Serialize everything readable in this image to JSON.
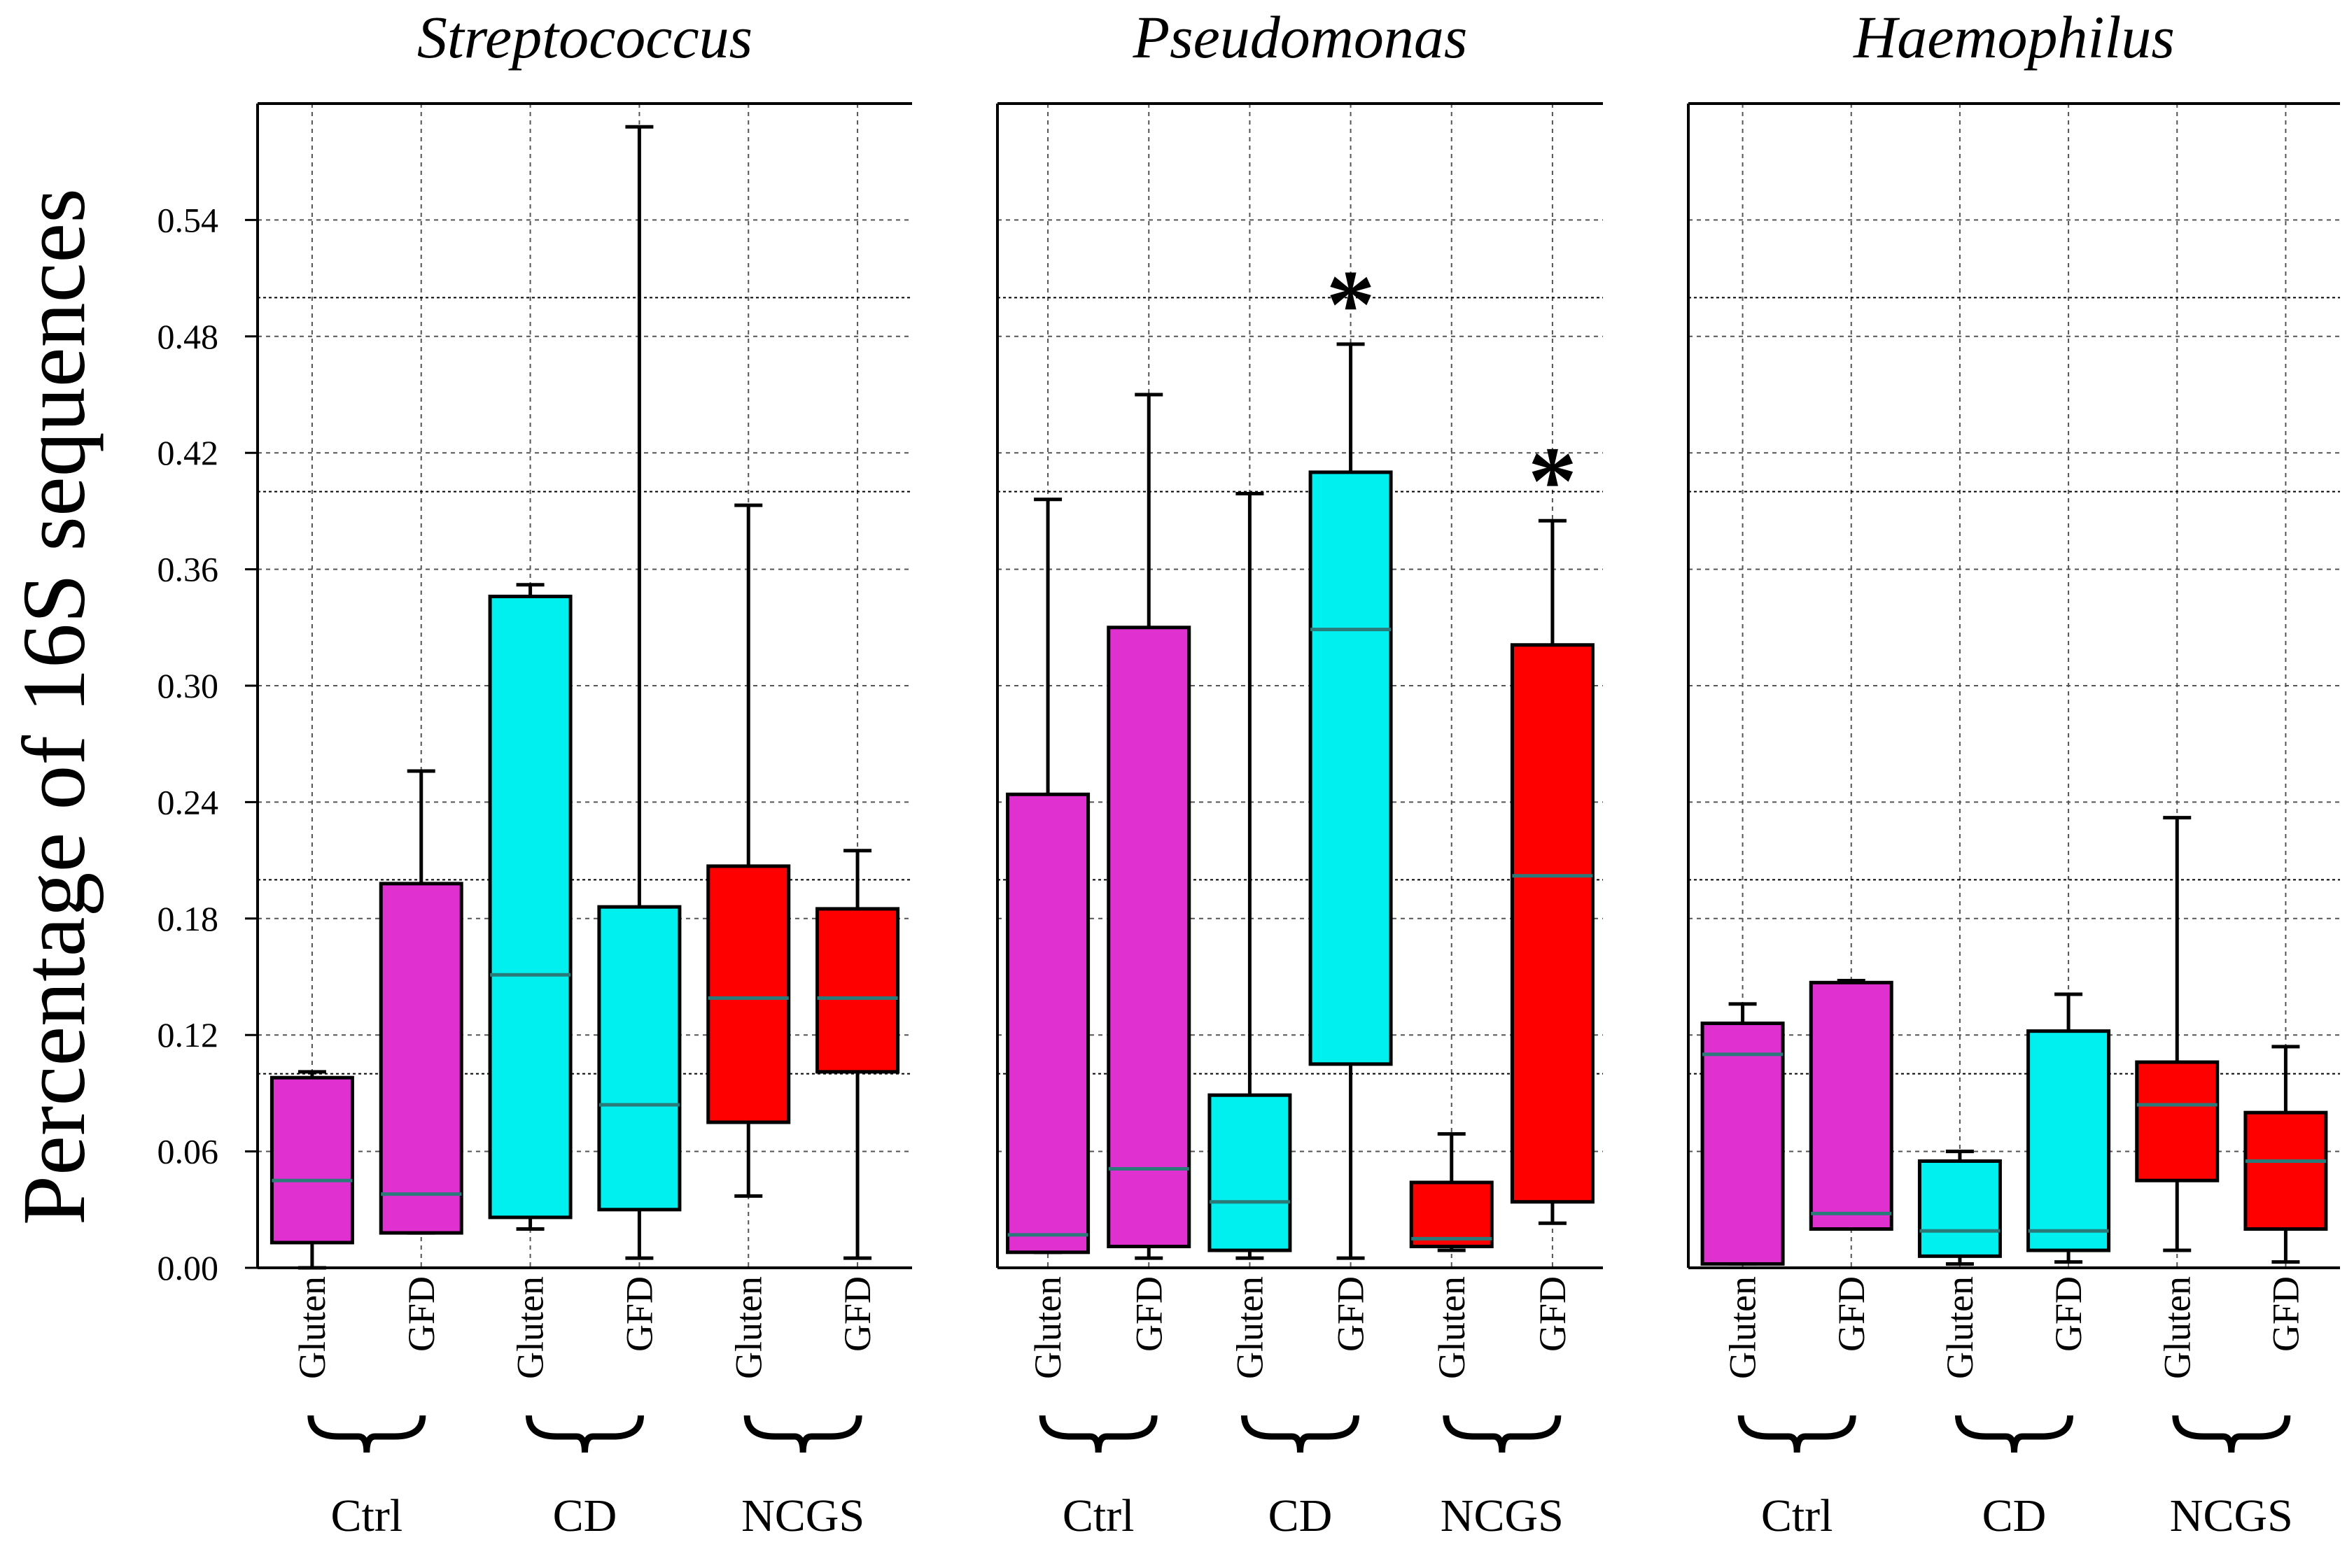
{
  "chart_data": {
    "type": "boxplot",
    "ylabel": "Percentage of 16S sequences",
    "ylim": [
      0,
      0.6
    ],
    "yticks": [
      "0.00",
      "0.06",
      "0.12",
      "0.18",
      "0.24",
      "0.30",
      "0.36",
      "0.42",
      "0.48",
      "0.54"
    ],
    "groups": [
      "Ctrl",
      "CD",
      "NCGS"
    ],
    "categories": [
      "Gluten",
      "GFD",
      "Gluten",
      "GFD",
      "Gluten",
      "GFD"
    ],
    "colors": {
      "Ctrl": "#e030d0",
      "CD": "#00f0f0",
      "NCGS": "#ff0000"
    },
    "panels": [
      {
        "title": "Streptococcus",
        "boxes": [
          {
            "group": "Ctrl",
            "label": "Gluten",
            "min": 0.0,
            "q1": 0.013,
            "median": 0.045,
            "q3": 0.098,
            "max": 0.101,
            "star": false
          },
          {
            "group": "Ctrl",
            "label": "GFD",
            "min": 0.018,
            "q1": 0.018,
            "median": 0.038,
            "q3": 0.198,
            "max": 0.256,
            "star": false
          },
          {
            "group": "CD",
            "label": "Gluten",
            "min": 0.02,
            "q1": 0.026,
            "median": 0.151,
            "q3": 0.346,
            "max": 0.352,
            "star": false
          },
          {
            "group": "CD",
            "label": "GFD",
            "min": 0.005,
            "q1": 0.03,
            "median": 0.084,
            "q3": 0.186,
            "max": 0.588,
            "star": false
          },
          {
            "group": "NCGS",
            "label": "Gluten",
            "min": 0.037,
            "q1": 0.075,
            "median": 0.139,
            "q3": 0.207,
            "max": 0.393,
            "star": false
          },
          {
            "group": "NCGS",
            "label": "GFD",
            "min": 0.005,
            "q1": 0.101,
            "median": 0.139,
            "q3": 0.185,
            "max": 0.215,
            "star": false
          }
        ]
      },
      {
        "title": "Pseudomonas",
        "boxes": [
          {
            "group": "Ctrl",
            "label": "Gluten",
            "min": 0.008,
            "q1": 0.008,
            "median": 0.017,
            "q3": 0.244,
            "max": 0.396,
            "star": false
          },
          {
            "group": "Ctrl",
            "label": "GFD",
            "min": 0.005,
            "q1": 0.011,
            "median": 0.051,
            "q3": 0.33,
            "max": 0.45,
            "star": false
          },
          {
            "group": "CD",
            "label": "Gluten",
            "min": 0.005,
            "q1": 0.009,
            "median": 0.034,
            "q3": 0.089,
            "max": 0.399,
            "star": false
          },
          {
            "group": "CD",
            "label": "GFD",
            "min": 0.005,
            "q1": 0.105,
            "median": 0.329,
            "q3": 0.41,
            "max": 0.476,
            "star": true
          },
          {
            "group": "NCGS",
            "label": "Gluten",
            "min": 0.009,
            "q1": 0.011,
            "median": 0.015,
            "q3": 0.044,
            "max": 0.069,
            "star": false
          },
          {
            "group": "NCGS",
            "label": "GFD",
            "min": 0.023,
            "q1": 0.034,
            "median": 0.202,
            "q3": 0.321,
            "max": 0.385,
            "star": true
          }
        ]
      },
      {
        "title": "Haemophilus",
        "boxes": [
          {
            "group": "Ctrl",
            "label": "Gluten",
            "min": 0.002,
            "q1": 0.002,
            "median": 0.11,
            "q3": 0.126,
            "max": 0.136,
            "star": false
          },
          {
            "group": "Ctrl",
            "label": "GFD",
            "min": 0.02,
            "q1": 0.02,
            "median": 0.028,
            "q3": 0.147,
            "max": 0.148,
            "star": false
          },
          {
            "group": "CD",
            "label": "Gluten",
            "min": 0.002,
            "q1": 0.006,
            "median": 0.019,
            "q3": 0.055,
            "max": 0.06,
            "star": false
          },
          {
            "group": "CD",
            "label": "GFD",
            "min": 0.003,
            "q1": 0.009,
            "median": 0.019,
            "q3": 0.122,
            "max": 0.141,
            "star": false
          },
          {
            "group": "NCGS",
            "label": "Gluten",
            "min": 0.009,
            "q1": 0.045,
            "median": 0.084,
            "q3": 0.106,
            "max": 0.232,
            "star": false
          },
          {
            "group": "NCGS",
            "label": "GFD",
            "min": 0.003,
            "q1": 0.02,
            "median": 0.055,
            "q3": 0.08,
            "max": 0.114,
            "star": false
          }
        ]
      }
    ],
    "annotations": {
      "significance_marker": "*"
    }
  }
}
